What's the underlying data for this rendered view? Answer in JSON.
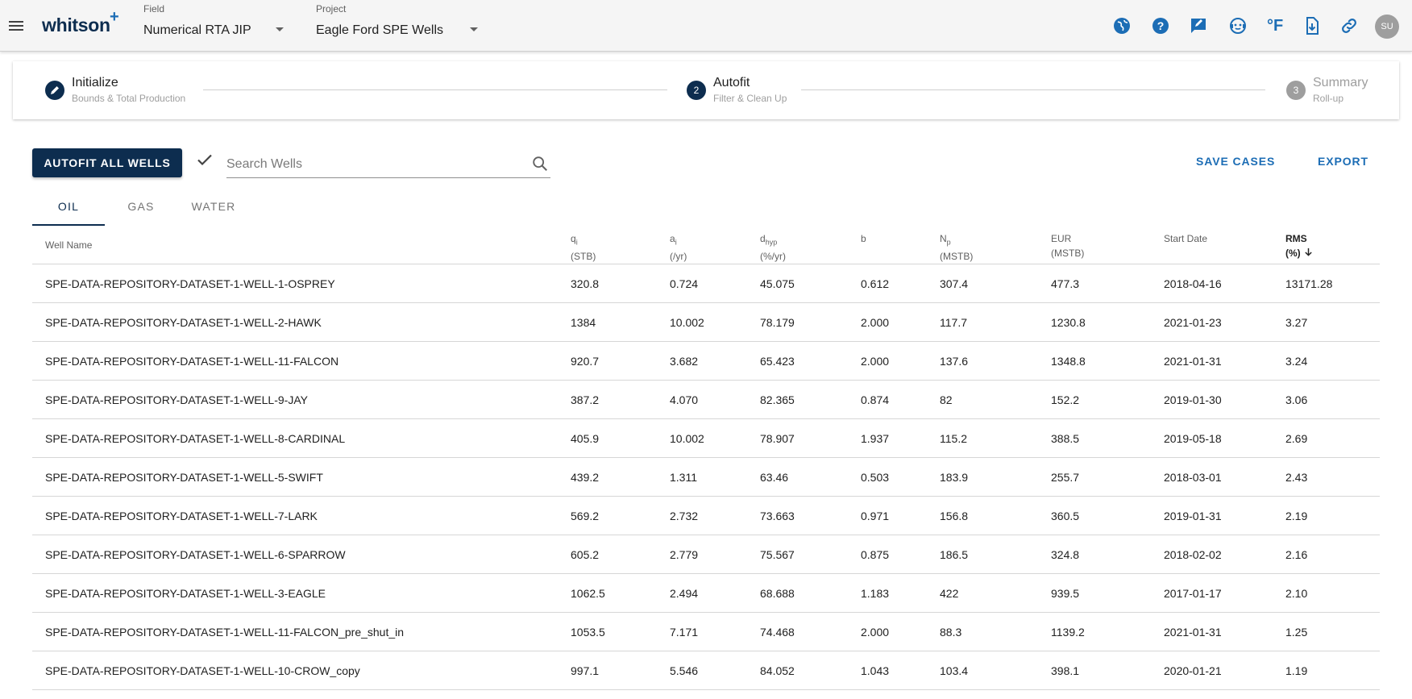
{
  "appbar": {
    "brand": "whitson",
    "brand_plus": "+",
    "field_label": "Field",
    "field_value": "Numerical RTA JIP",
    "project_label": "Project",
    "project_value": "Eagle Ford SPE Wells",
    "temperature_unit": "°F",
    "user_initials": "SU",
    "icons": [
      "menu-icon",
      "globe-icon",
      "help-icon",
      "feedback-icon",
      "support-icon",
      "temperature-icon",
      "download-icon",
      "link-icon"
    ]
  },
  "stepper": {
    "steps": [
      {
        "number": "",
        "title": "Initialize",
        "subtitle": "Bounds & Total Production",
        "state": "completed"
      },
      {
        "number": "2",
        "title": "Autofit",
        "subtitle": "Filter & Clean Up",
        "state": "active"
      },
      {
        "number": "3",
        "title": "Summary",
        "subtitle": "Roll-up",
        "state": "pending"
      }
    ]
  },
  "toolbar": {
    "autofit_label": "AUTOFIT ALL WELLS",
    "search_placeholder": "Search Wells",
    "save_label": "SAVE CASES",
    "export_label": "EXPORT"
  },
  "tabs": [
    {
      "label": "OIL",
      "active": true
    },
    {
      "label": "GAS",
      "active": false
    },
    {
      "label": "WATER",
      "active": false
    }
  ],
  "table": {
    "columns": [
      {
        "key": "name",
        "label": "Well Name",
        "sym": "",
        "sub": "",
        "unit": ""
      },
      {
        "key": "qi",
        "label": "",
        "sym": "q",
        "sub": "i",
        "unit": "(STB)"
      },
      {
        "key": "ai",
        "label": "",
        "sym": "a",
        "sub": "i",
        "unit": "(/yr)"
      },
      {
        "key": "dhyp",
        "label": "",
        "sym": "d",
        "sub": "hyp",
        "unit": "(%/yr)"
      },
      {
        "key": "b",
        "label": "b",
        "sym": "",
        "sub": "",
        "unit": ""
      },
      {
        "key": "np",
        "label": "",
        "sym": "N",
        "sub": "p",
        "unit": "(MSTB)"
      },
      {
        "key": "eur",
        "label": "EUR",
        "sym": "",
        "sub": "",
        "unit": "(MSTB)"
      },
      {
        "key": "start",
        "label": "Start Date",
        "sym": "",
        "sub": "",
        "unit": ""
      },
      {
        "key": "rms",
        "label": "RMS",
        "sym": "",
        "sub": "",
        "unit": "(%)"
      }
    ],
    "sort_column": "rms",
    "sort_direction": "descending",
    "rows": [
      [
        "SPE-DATA-REPOSITORY-DATASET-1-WELL-1-OSPREY",
        "320.8",
        "0.724",
        "45.075",
        "0.612",
        "307.4",
        "477.3",
        "2018-04-16",
        "13171.28"
      ],
      [
        "SPE-DATA-REPOSITORY-DATASET-1-WELL-2-HAWK",
        "1384",
        "10.002",
        "78.179",
        "2.000",
        "117.7",
        "1230.8",
        "2021-01-23",
        "3.27"
      ],
      [
        "SPE-DATA-REPOSITORY-DATASET-1-WELL-11-FALCON",
        "920.7",
        "3.682",
        "65.423",
        "2.000",
        "137.6",
        "1348.8",
        "2021-01-31",
        "3.24"
      ],
      [
        "SPE-DATA-REPOSITORY-DATASET-1-WELL-9-JAY",
        "387.2",
        "4.070",
        "82.365",
        "0.874",
        "82",
        "152.2",
        "2019-01-30",
        "3.06"
      ],
      [
        "SPE-DATA-REPOSITORY-DATASET-1-WELL-8-CARDINAL",
        "405.9",
        "10.002",
        "78.907",
        "1.937",
        "115.2",
        "388.5",
        "2019-05-18",
        "2.69"
      ],
      [
        "SPE-DATA-REPOSITORY-DATASET-1-WELL-5-SWIFT",
        "439.2",
        "1.311",
        "63.46",
        "0.503",
        "183.9",
        "255.7",
        "2018-03-01",
        "2.43"
      ],
      [
        "SPE-DATA-REPOSITORY-DATASET-1-WELL-7-LARK",
        "569.2",
        "2.732",
        "73.663",
        "0.971",
        "156.8",
        "360.5",
        "2019-01-31",
        "2.19"
      ],
      [
        "SPE-DATA-REPOSITORY-DATASET-1-WELL-6-SPARROW",
        "605.2",
        "2.779",
        "75.567",
        "0.875",
        "186.5",
        "324.8",
        "2018-02-02",
        "2.16"
      ],
      [
        "SPE-DATA-REPOSITORY-DATASET-1-WELL-3-EAGLE",
        "1062.5",
        "2.494",
        "68.688",
        "1.183",
        "422",
        "939.5",
        "2017-01-17",
        "2.10"
      ],
      [
        "SPE-DATA-REPOSITORY-DATASET-1-WELL-11-FALCON_pre_shut_in",
        "1053.5",
        "7.171",
        "74.468",
        "2.000",
        "88.3",
        "1139.2",
        "2021-01-31",
        "1.25"
      ],
      [
        "SPE-DATA-REPOSITORY-DATASET-1-WELL-10-CROW_copy",
        "997.1",
        "5.546",
        "84.052",
        "1.043",
        "103.4",
        "398.1",
        "2020-01-21",
        "1.19"
      ]
    ]
  },
  "colors": {
    "primary": "#0d2d4f",
    "accent": "#1c6db5",
    "pending": "#9e9e9e"
  }
}
